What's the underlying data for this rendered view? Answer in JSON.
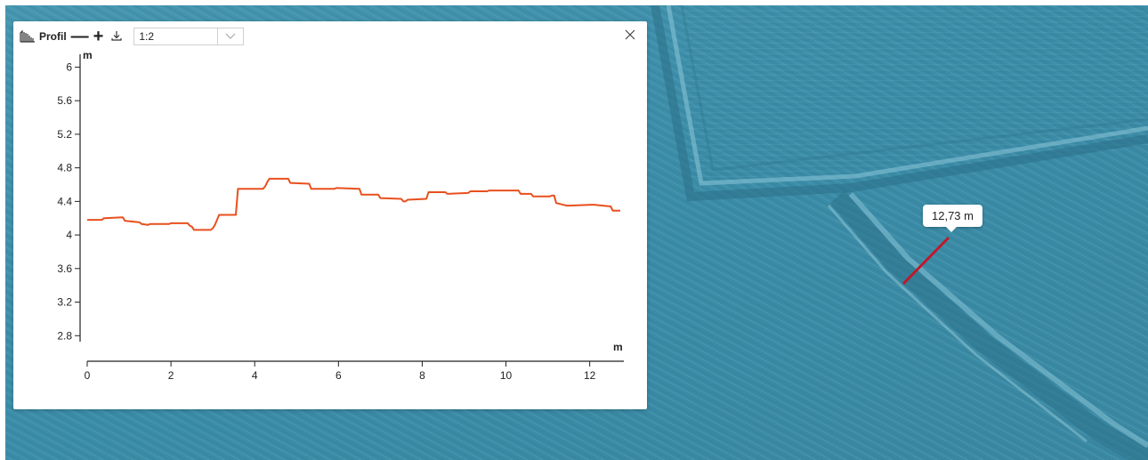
{
  "panel": {
    "title": "Profil",
    "zoom_out_label": "—",
    "zoom_in_label": "+",
    "scale_value": "1:2",
    "icons": {
      "profile": "profile-chart-icon",
      "download": "download-icon",
      "dropdown": "chevron-down-icon",
      "close": "close-icon"
    }
  },
  "map": {
    "measurement_label": "12,73 m",
    "colors": {
      "terrain": "#3e8fa9",
      "measure_line": "#c0182a"
    }
  },
  "chart_data": {
    "type": "line",
    "title": "",
    "xlabel": "m",
    "ylabel": "m",
    "xlim": [
      0,
      12.73
    ],
    "ylim": [
      2.75,
      6.1
    ],
    "xticks": [
      0,
      2,
      4,
      6,
      8,
      10,
      12
    ],
    "yticks": [
      2.8,
      3.2,
      3.6,
      4,
      4.4,
      4.8,
      5.2,
      5.6,
      6
    ],
    "line_color": "#e8501e",
    "series": [
      {
        "x": [
          0,
          0.35,
          0.4,
          0.85,
          0.9,
          1.25,
          1.3,
          1.45,
          1.5,
          1.95,
          2.0,
          2.4,
          2.45,
          2.5,
          2.55,
          2.95,
          3.0,
          3.05,
          3.1,
          3.15,
          3.2,
          3.55,
          3.6,
          4.2,
          4.25,
          4.3,
          4.35,
          4.8,
          4.85,
          5.3,
          5.35,
          5.9,
          5.95,
          6.5,
          6.55,
          6.95,
          7.0,
          7.5,
          7.55,
          7.6,
          7.65,
          8.1,
          8.15,
          8.55,
          8.6,
          9.1,
          9.15,
          9.55,
          9.6,
          10.3,
          10.35,
          10.6,
          10.65,
          11.05,
          11.1,
          11.15,
          11.2,
          11.45,
          11.5,
          12.05,
          12.1,
          12.5,
          12.55,
          12.73
        ],
        "y": [
          4.18,
          4.18,
          4.2,
          4.21,
          4.17,
          4.15,
          4.13,
          4.12,
          4.13,
          4.13,
          4.14,
          4.14,
          4.11,
          4.1,
          4.06,
          4.06,
          4.08,
          4.12,
          4.18,
          4.24,
          4.24,
          4.24,
          4.55,
          4.55,
          4.58,
          4.63,
          4.67,
          4.67,
          4.62,
          4.61,
          4.55,
          4.55,
          4.56,
          4.55,
          4.48,
          4.48,
          4.44,
          4.43,
          4.4,
          4.4,
          4.42,
          4.43,
          4.51,
          4.51,
          4.49,
          4.5,
          4.52,
          4.52,
          4.53,
          4.53,
          4.49,
          4.49,
          4.46,
          4.46,
          4.47,
          4.47,
          4.38,
          4.35,
          4.35,
          4.36,
          4.36,
          4.34,
          4.29,
          4.29
        ]
      }
    ]
  }
}
